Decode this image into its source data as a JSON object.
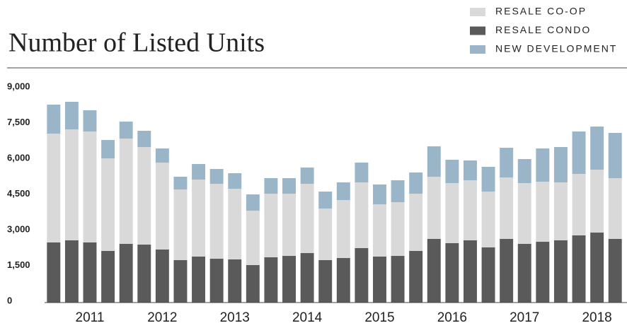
{
  "chart_data": {
    "type": "bar",
    "stacked": true,
    "title": "Number of Listed Units",
    "categories": [
      null,
      null,
      "2011",
      null,
      null,
      null,
      "2012",
      null,
      null,
      null,
      "2013",
      null,
      null,
      null,
      "2014",
      null,
      null,
      null,
      "2015",
      null,
      null,
      null,
      "2016",
      null,
      null,
      null,
      "2017",
      null,
      null,
      null,
      "2018",
      null
    ],
    "series": [
      {
        "name": "RESALE CO-OP",
        "color": "#d9d9d9",
        "values": [
          4574,
          4663,
          4663,
          3891,
          4425,
          4099,
          3653,
          2970,
          3237,
          3148,
          2970,
          2287,
          2673,
          2614,
          2911,
          2168,
          2435,
          2762,
          2198,
          2257,
          2406,
          2614,
          2525,
          2525,
          2346,
          2584,
          2554,
          2525,
          2435,
          2584,
          2643,
          2554
        ]
      },
      {
        "name": "RESALE CONDO",
        "color": "#5a5a5a",
        "values": [
          2525,
          2614,
          2525,
          2168,
          2465,
          2435,
          2228,
          1782,
          1931,
          1841,
          1812,
          1574,
          1901,
          1960,
          2079,
          1782,
          1871,
          2287,
          1931,
          1960,
          2168,
          2673,
          2495,
          2614,
          2317,
          2673,
          2465,
          2554,
          2614,
          2822,
          2940,
          2673
        ]
      },
      {
        "name": "NEW DEVELOPMENT",
        "color": "#9bb5c8",
        "values": [
          1218,
          1158,
          891,
          772,
          713,
          683,
          594,
          535,
          653,
          624,
          653,
          683,
          653,
          653,
          683,
          713,
          743,
          832,
          832,
          921,
          891,
          1277,
          980,
          832,
          1040,
          1247,
          1010,
          1396,
          1485,
          1782,
          1812,
          1901
        ]
      }
    ],
    "ylim": [
      0,
      9000
    ],
    "yticks": [
      0,
      {
        "value": 1500,
        "label": "1,500"
      },
      {
        "value": 3000,
        "label": "3,000"
      },
      {
        "value": 4500,
        "label": "4,500"
      },
      {
        "value": 6000,
        "label": "6,000"
      },
      {
        "value": 7500,
        "label": "7,500"
      },
      {
        "value": 9000,
        "label": "9,000"
      }
    ],
    "grid": false
  }
}
